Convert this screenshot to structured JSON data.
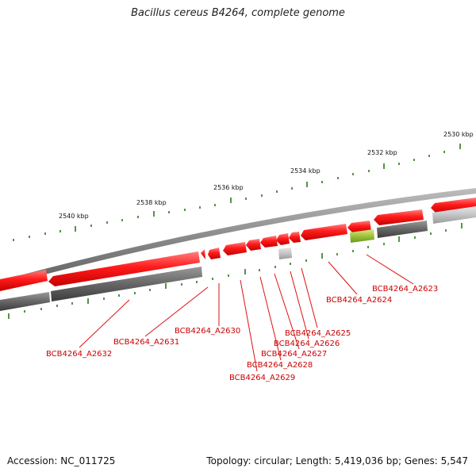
{
  "title": "Bacillus cereus B4264, complete genome",
  "footer": {
    "accession": "Accession: NC_011725",
    "summary": "Topology: circular; Length: 5,419,036 bp; Genes: 5,547"
  },
  "kbp_labels": [
    "2530 kbp",
    "2532 kbp",
    "2534 kbp",
    "2536 kbp",
    "2538 kbp",
    "2540 kbp"
  ],
  "gene_labels": [
    "BCB4264_A2623",
    "BCB4264_A2624",
    "BCB4264_A2625",
    "BCB4264_A2626",
    "BCB4264_A2627",
    "BCB4264_A2628",
    "BCB4264_A2629",
    "BCB4264_A2630",
    "BCB4264_A2631",
    "BCB4264_A2632"
  ],
  "colors": {
    "gene_red": "#ee1111",
    "gene_red_light": "#ff6666",
    "backbone": "#888888",
    "cog_dark": "#555555",
    "cog_light": "#bbbbbb",
    "tick_green": "#2a7a1a",
    "label_red": "#cc0000",
    "highlight_green": "#99cc33"
  }
}
